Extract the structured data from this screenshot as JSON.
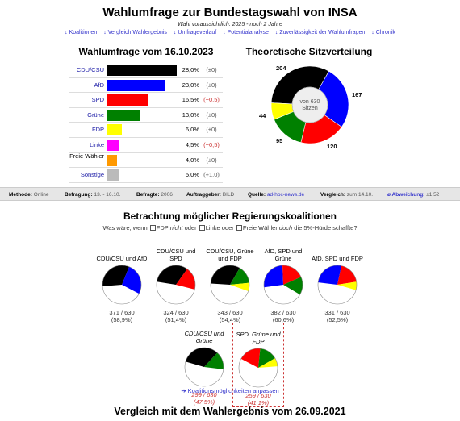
{
  "header": {
    "title": "Wahlumfrage zur Bundestagswahl von INSA",
    "subtitle": "Wahl voraussichtlich: 2025 - noch 2 Jahre",
    "nav": [
      "↓ Koalitionen",
      "↓ Vergleich Wahlergebnis",
      "↓ Umfrageverlauf",
      "↓ Potentialanalyse",
      "↓ Zuverlässigkeit der Wahlumfragen",
      "↓ Chronik"
    ]
  },
  "poll": {
    "heading": "Wahlumfrage vom 16.10.2023",
    "rows": [
      {
        "party": "CDU/CSU",
        "value": "28,0%",
        "diff": "(±0)",
        "pct": 28.0,
        "color": "#000000"
      },
      {
        "party": "AfD",
        "value": "23,0%",
        "diff": "(±0)",
        "pct": 23.0,
        "color": "#0000ff"
      },
      {
        "party": "SPD",
        "value": "16,5%",
        "diff": "(−0,5)",
        "pct": 16.5,
        "color": "#ff0000"
      },
      {
        "party": "Grüne",
        "value": "13,0%",
        "diff": "(±0)",
        "pct": 13.0,
        "color": "#008000"
      },
      {
        "party": "FDP",
        "value": "6,0%",
        "diff": "(±0)",
        "pct": 6.0,
        "color": "#ffff00"
      },
      {
        "party": "Linke",
        "value": "4,5%",
        "diff": "(−0,5)",
        "pct": 4.5,
        "color": "#ff00ff"
      },
      {
        "party": "Freie Wähler",
        "value": "4,0%",
        "diff": "(±0)",
        "pct": 4.0,
        "color": "#ff9900"
      },
      {
        "party": "Sonstige",
        "value": "5,0%",
        "diff": "(+1,0)",
        "pct": 5.0,
        "color": "#bbbbbb"
      }
    ]
  },
  "seats": {
    "heading": "Theoretische Sitzverteilung",
    "center_line1": "von 630",
    "center_line2": "Sitzen",
    "parts": [
      {
        "party": "CDU/CSU",
        "seats": 204,
        "label": "204",
        "color": "#000000"
      },
      {
        "party": "AfD",
        "seats": 167,
        "label": "167",
        "color": "#0000ff"
      },
      {
        "party": "SPD",
        "seats": 120,
        "label": "120",
        "color": "#ff0000"
      },
      {
        "party": "Grüne",
        "seats": 95,
        "label": "95",
        "color": "#008000"
      },
      {
        "party": "FDP",
        "seats": 44,
        "label": "44",
        "color": "#ffff00"
      }
    ]
  },
  "info": {
    "methode_label": "Methode:",
    "methode": "Online",
    "befragung_label": "Befragung:",
    "befragung": "13. - 16.10.",
    "befragte_label": "Befragte:",
    "befragte": "2006",
    "auftrag_label": "Auftraggeber:",
    "auftrag": "BILD",
    "quelle_label": "Quelle:",
    "quelle": "ad-hoc-news.de",
    "vergleich_label": "Vergleich:",
    "vergleich": "zum 14.10.",
    "abw_label": "ø Abweichung:",
    "abw": "±1,52"
  },
  "coalitions": {
    "heading": "Betrachtung möglicher Regierungskoalitionen",
    "filter_prefix": "Was wäre, wenn",
    "filter_fdp": "FDP",
    "filter_fdp_em": "nicht",
    "filter_fdp_suffix": "oder",
    "filter_linke": "Linke",
    "filter_linke_suffix": "oder",
    "filter_fw": "Freie Wähler",
    "filter_fw_em": "doch",
    "filter_fw_suffix": "die 5%-Hürde schaffte?",
    "items": [
      {
        "label": "CDU/CSU und AfD",
        "seats": "371 / 630",
        "pct": "(58,9%)"
      },
      {
        "label": "CDU/CSU und SPD",
        "seats": "324 / 630",
        "pct": "(51,4%)"
      },
      {
        "label": "CDU/CSU, Grüne und FDP",
        "seats": "343 / 630",
        "pct": "(54,4%)"
      },
      {
        "label": "AfD, SPD und Grüne",
        "seats": "382 / 630",
        "pct": "(60,6%)"
      },
      {
        "label": "AfD, SPD und FDP",
        "seats": "331 / 630",
        "pct": "(52,5%)"
      },
      {
        "label": "CDU/CSU und Grüne",
        "seats": "299 / 630",
        "pct": "(47,5%)"
      },
      {
        "label": "SPD, Grüne und FDP",
        "seats": "259 / 630",
        "pct": "(41,1%)"
      }
    ],
    "adjust_link": "➔ Koalitionsmöglichkeiten anpassen"
  },
  "comparison": {
    "heading": "Vergleich mit dem Wahlergebnis vom 26.09.2021"
  }
}
